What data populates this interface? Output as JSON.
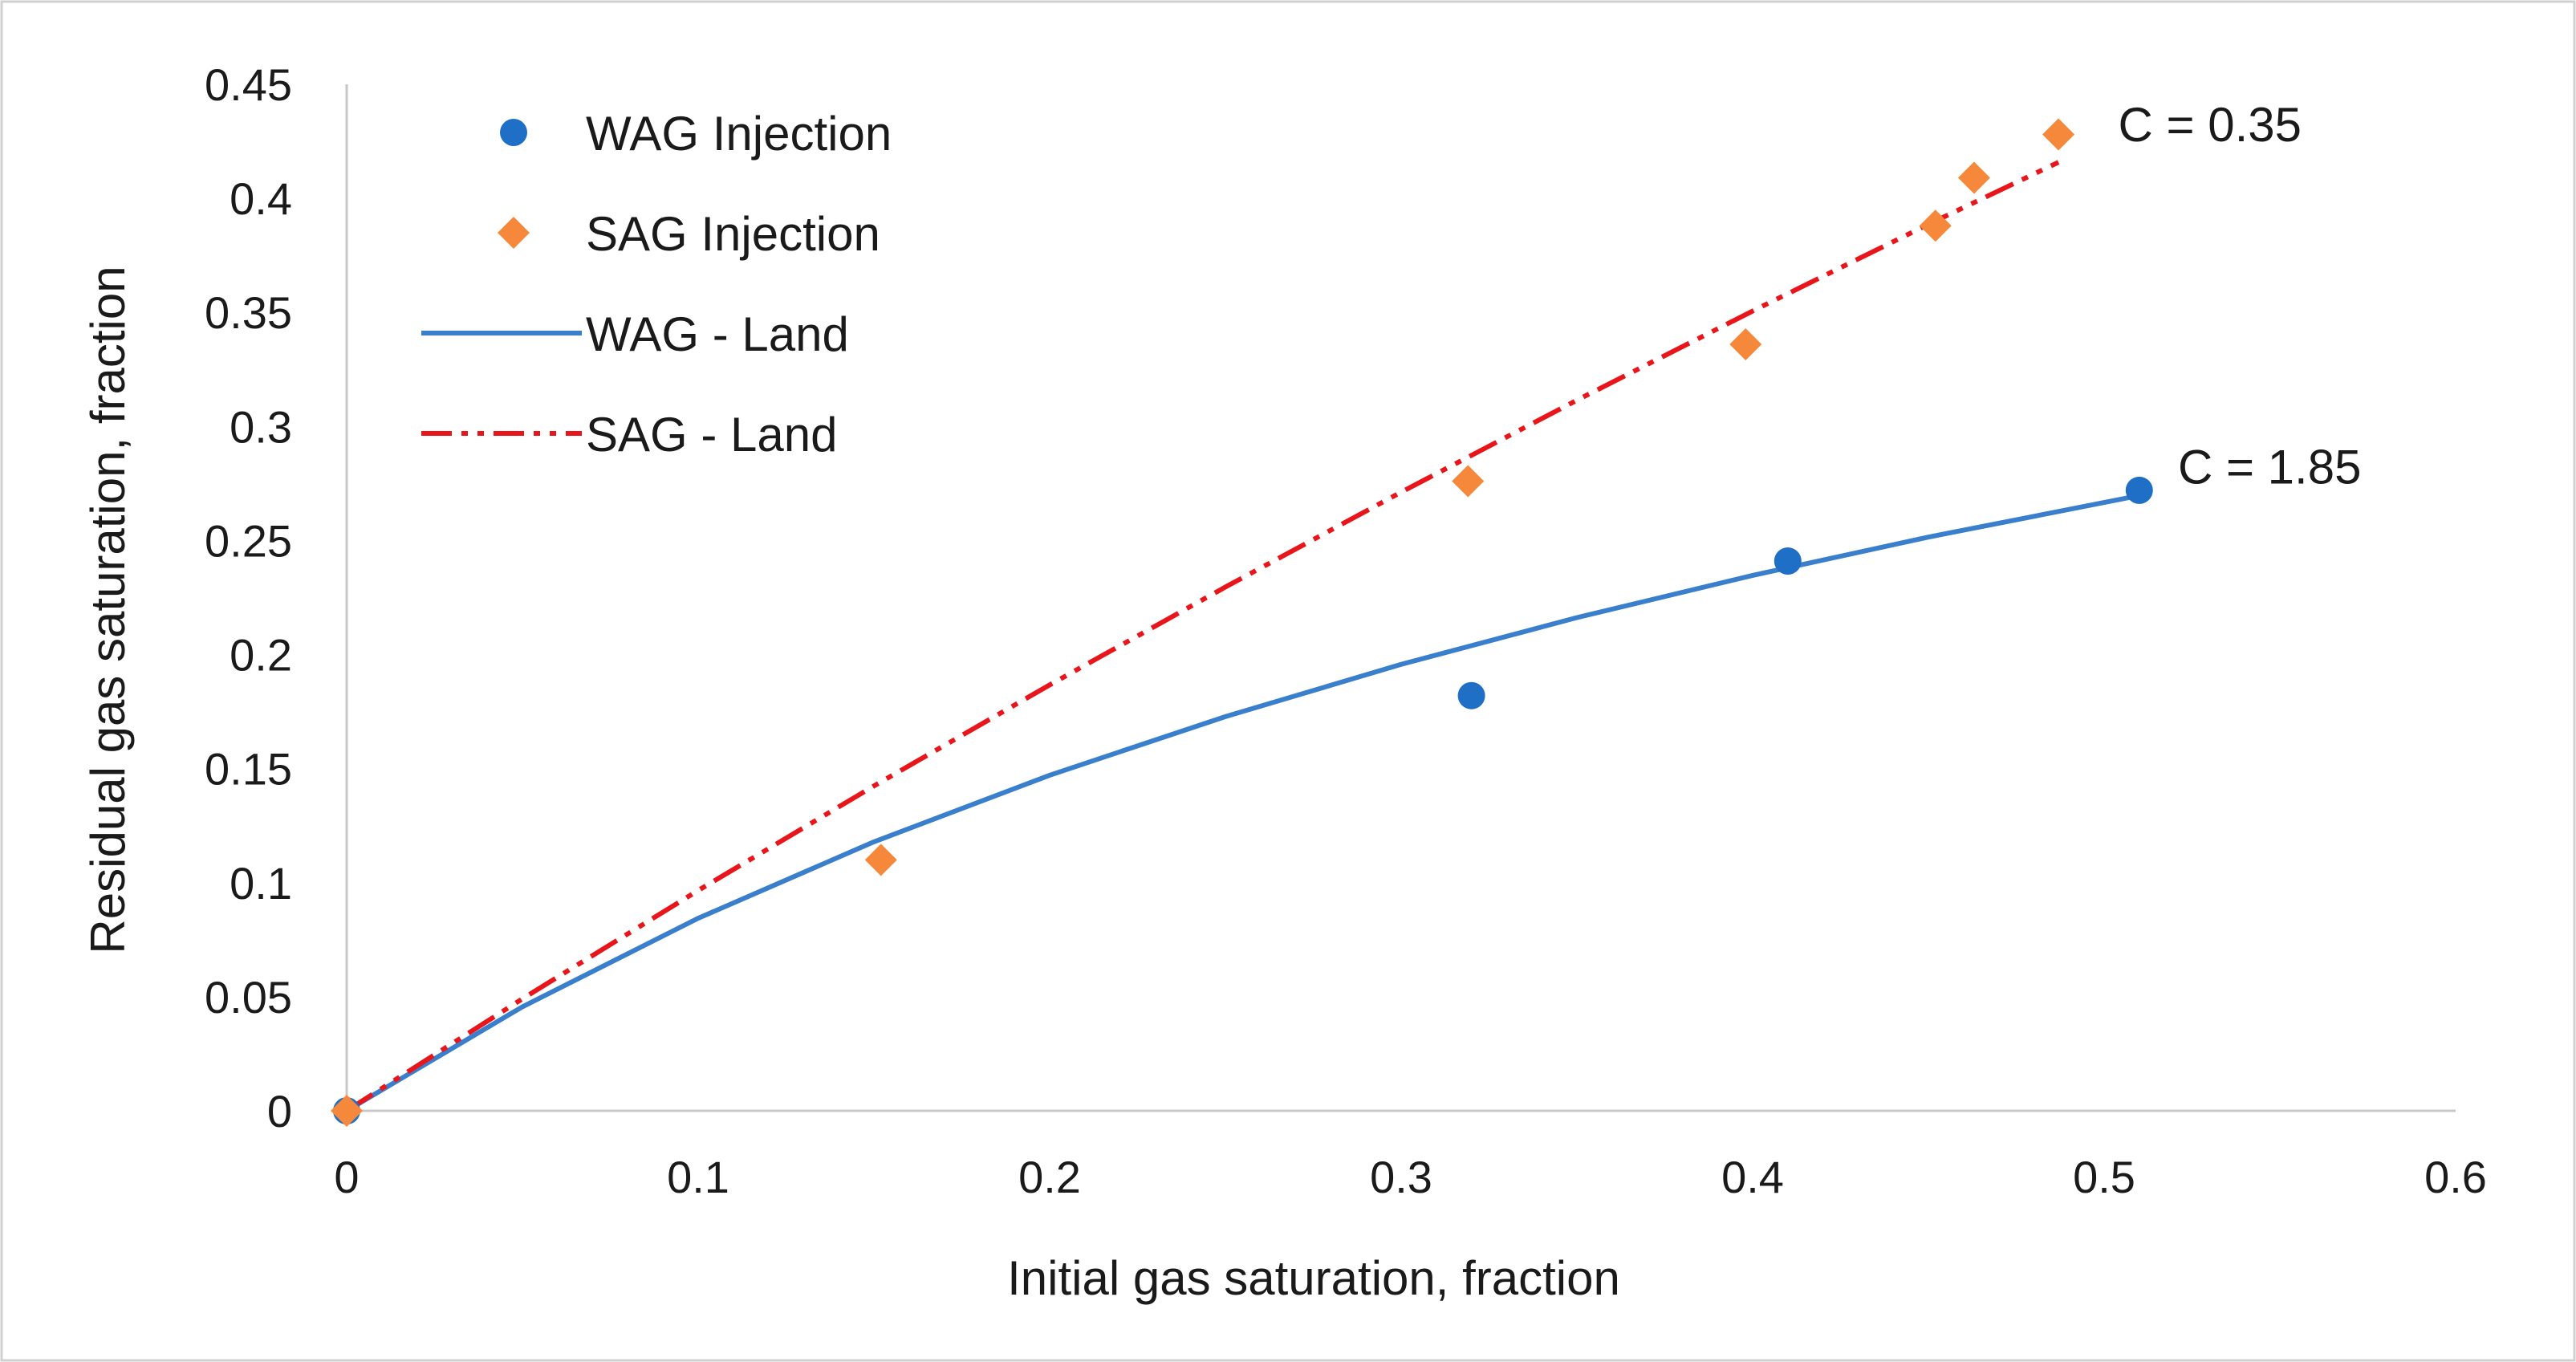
{
  "chart_data": {
    "type": "scatter",
    "title": "",
    "xlabel": "Initial gas saturation, fraction",
    "ylabel": "Residual gas saturation, fraction",
    "xlim": [
      0,
      0.6
    ],
    "ylim": [
      0,
      0.45
    ],
    "x_ticks": [
      0,
      0.1,
      0.2,
      0.3,
      0.4,
      0.5,
      0.6
    ],
    "y_ticks": [
      0,
      0.05,
      0.1,
      0.15,
      0.2,
      0.25,
      0.3,
      0.35,
      0.4,
      0.45
    ],
    "x_tick_labels": [
      "0",
      "0.1",
      "0.2",
      "0.3",
      "0.4",
      "0.5",
      "0.6"
    ],
    "y_tick_labels": [
      "0",
      "0.05",
      "0.1",
      "0.15",
      "0.2",
      "0.25",
      "0.3",
      "0.35",
      "0.4",
      "0.45"
    ],
    "grid": false,
    "legend_position": "top-left",
    "series": [
      {
        "name": "WAG Injection",
        "kind": "scatter",
        "marker": "circle",
        "color": "#1f6fc6",
        "x": [
          0,
          0.32,
          0.41,
          0.51
        ],
        "y": [
          0,
          0.182,
          0.241,
          0.272
        ]
      },
      {
        "name": "SAG Injection",
        "kind": "scatter",
        "marker": "diamond",
        "color": "#f5883a",
        "x": [
          0,
          0.152,
          0.319,
          0.398,
          0.452,
          0.463,
          0.487
        ],
        "y": [
          0,
          0.11,
          0.276,
          0.336,
          0.388,
          0.409,
          0.428
        ]
      },
      {
        "name": "WAG - Land",
        "kind": "line",
        "style": "solid",
        "color": "#3a7fcc",
        "x": [
          0,
          0.05,
          0.1,
          0.15,
          0.2,
          0.25,
          0.3,
          0.35,
          0.4,
          0.45,
          0.51
        ],
        "y": [
          0,
          0.0456,
          0.0844,
          0.1179,
          0.1471,
          0.1728,
          0.1957,
          0.2162,
          0.2347,
          0.2515,
          0.2697
        ]
      },
      {
        "name": "SAG - Land",
        "kind": "line",
        "style": "dash-dot-dot",
        "color": "#e8161b",
        "x": [
          0,
          0.05,
          0.1,
          0.15,
          0.2,
          0.25,
          0.3,
          0.35,
          0.4,
          0.45,
          0.487
        ],
        "y": [
          0,
          0.0491,
          0.0966,
          0.1424,
          0.1867,
          0.2296,
          0.2712,
          0.3115,
          0.3506,
          0.3886,
          0.4158
        ]
      }
    ],
    "annotations": [
      {
        "text": "C = 0.35",
        "x": 0.504,
        "y": 0.432
      },
      {
        "text": "C = 1.85",
        "x": 0.521,
        "y": 0.282
      }
    ]
  }
}
